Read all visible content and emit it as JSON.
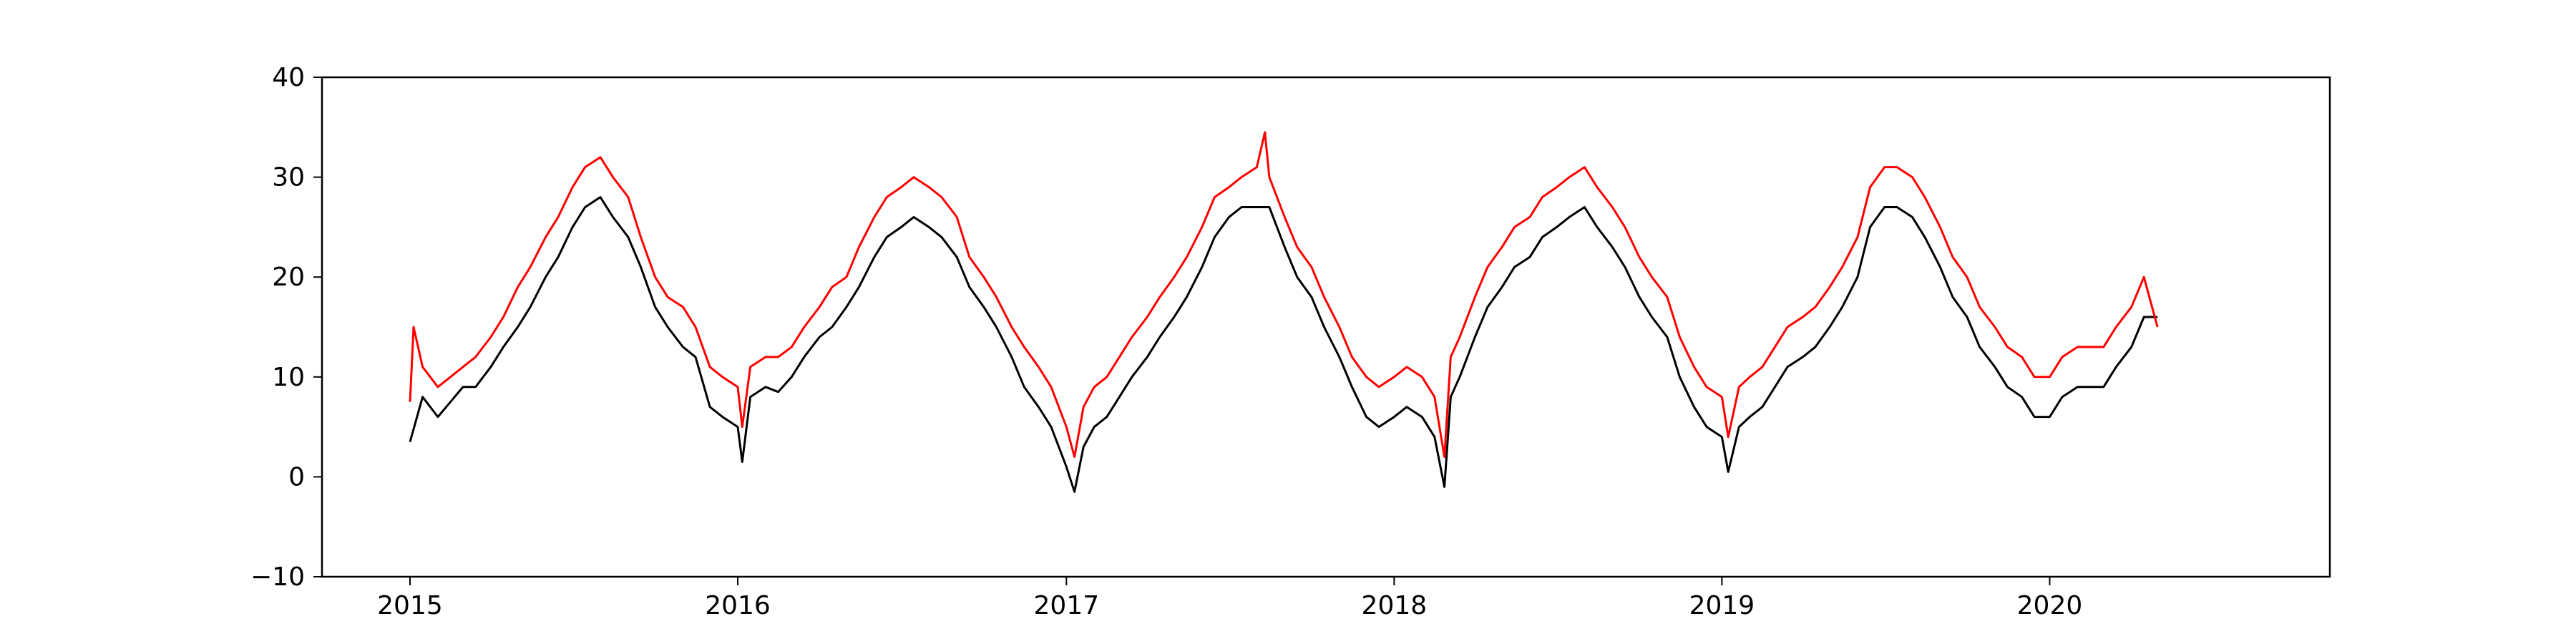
{
  "chart_data": {
    "type": "line",
    "title": "",
    "xlabel": "",
    "ylabel": "",
    "xlim": [
      "2014-09-25",
      "2020-11-08"
    ],
    "ylim": [
      -10,
      40
    ],
    "grid": false,
    "legend": "none",
    "x_ticks": [
      {
        "value": "2015-01-01",
        "label": "2015"
      },
      {
        "value": "2016-01-01",
        "label": "2016"
      },
      {
        "value": "2017-01-01",
        "label": "2017"
      },
      {
        "value": "2018-01-01",
        "label": "2018"
      },
      {
        "value": "2019-01-01",
        "label": "2019"
      },
      {
        "value": "2020-01-01",
        "label": "2020"
      }
    ],
    "y_ticks": [
      {
        "value": -10,
        "label": "−10"
      },
      {
        "value": 0,
        "label": "0"
      },
      {
        "value": 10,
        "label": "10"
      },
      {
        "value": 20,
        "label": "20"
      },
      {
        "value": 30,
        "label": "30"
      },
      {
        "value": 40,
        "label": "40"
      }
    ],
    "series": [
      {
        "color": "#000000",
        "points": [
          [
            "2015-01-01",
            3.5
          ],
          [
            "2015-01-15",
            8
          ],
          [
            "2015-02-01",
            6
          ],
          [
            "2015-02-15",
            7.5
          ],
          [
            "2015-03-01",
            9
          ],
          [
            "2015-03-15",
            9
          ],
          [
            "2015-04-01",
            11
          ],
          [
            "2015-04-15",
            13
          ],
          [
            "2015-05-01",
            15
          ],
          [
            "2015-05-15",
            17
          ],
          [
            "2015-06-01",
            20
          ],
          [
            "2015-06-15",
            22
          ],
          [
            "2015-07-01",
            25
          ],
          [
            "2015-07-15",
            27
          ],
          [
            "2015-08-01",
            28
          ],
          [
            "2015-08-15",
            26
          ],
          [
            "2015-09-01",
            24
          ],
          [
            "2015-09-15",
            21
          ],
          [
            "2015-10-01",
            17
          ],
          [
            "2015-10-15",
            15
          ],
          [
            "2015-11-01",
            13
          ],
          [
            "2015-11-15",
            12
          ],
          [
            "2015-12-01",
            7
          ],
          [
            "2015-12-15",
            6
          ],
          [
            "2016-01-01",
            5
          ],
          [
            "2016-01-06",
            1.5
          ],
          [
            "2016-01-15",
            8
          ],
          [
            "2016-02-01",
            9
          ],
          [
            "2016-02-15",
            8.5
          ],
          [
            "2016-03-01",
            10
          ],
          [
            "2016-03-15",
            12
          ],
          [
            "2016-04-01",
            14
          ],
          [
            "2016-04-15",
            15
          ],
          [
            "2016-05-01",
            17
          ],
          [
            "2016-05-15",
            19
          ],
          [
            "2016-06-01",
            22
          ],
          [
            "2016-06-15",
            24
          ],
          [
            "2016-07-01",
            25
          ],
          [
            "2016-07-15",
            26
          ],
          [
            "2016-08-01",
            25
          ],
          [
            "2016-08-15",
            24
          ],
          [
            "2016-09-01",
            22
          ],
          [
            "2016-09-15",
            19
          ],
          [
            "2016-10-01",
            17
          ],
          [
            "2016-10-15",
            15
          ],
          [
            "2016-11-01",
            12
          ],
          [
            "2016-11-15",
            9
          ],
          [
            "2016-12-01",
            7
          ],
          [
            "2016-12-15",
            5
          ],
          [
            "2017-01-01",
            1
          ],
          [
            "2017-01-10",
            -1.5
          ],
          [
            "2017-01-20",
            3
          ],
          [
            "2017-02-01",
            5
          ],
          [
            "2017-02-15",
            6
          ],
          [
            "2017-03-01",
            8
          ],
          [
            "2017-03-15",
            10
          ],
          [
            "2017-04-01",
            12
          ],
          [
            "2017-04-15",
            14
          ],
          [
            "2017-05-01",
            16
          ],
          [
            "2017-05-15",
            18
          ],
          [
            "2017-06-01",
            21
          ],
          [
            "2017-06-15",
            24
          ],
          [
            "2017-07-01",
            26
          ],
          [
            "2017-07-15",
            27
          ],
          [
            "2017-08-01",
            27
          ],
          [
            "2017-08-15",
            27
          ],
          [
            "2017-09-01",
            23
          ],
          [
            "2017-09-15",
            20
          ],
          [
            "2017-10-01",
            18
          ],
          [
            "2017-10-15",
            15
          ],
          [
            "2017-11-01",
            12
          ],
          [
            "2017-11-15",
            9
          ],
          [
            "2017-12-01",
            6
          ],
          [
            "2017-12-15",
            5
          ],
          [
            "2018-01-01",
            6
          ],
          [
            "2018-01-15",
            7
          ],
          [
            "2018-02-01",
            6
          ],
          [
            "2018-02-15",
            4
          ],
          [
            "2018-02-26",
            -1
          ],
          [
            "2018-03-05",
            8
          ],
          [
            "2018-03-15",
            10
          ],
          [
            "2018-04-01",
            14
          ],
          [
            "2018-04-15",
            17
          ],
          [
            "2018-05-01",
            19
          ],
          [
            "2018-05-15",
            21
          ],
          [
            "2018-06-01",
            22
          ],
          [
            "2018-06-15",
            24
          ],
          [
            "2018-07-01",
            25
          ],
          [
            "2018-07-15",
            26
          ],
          [
            "2018-08-01",
            27
          ],
          [
            "2018-08-15",
            25
          ],
          [
            "2018-09-01",
            23
          ],
          [
            "2018-09-15",
            21
          ],
          [
            "2018-10-01",
            18
          ],
          [
            "2018-10-15",
            16
          ],
          [
            "2018-11-01",
            14
          ],
          [
            "2018-11-15",
            10
          ],
          [
            "2018-12-01",
            7
          ],
          [
            "2018-12-15",
            5
          ],
          [
            "2019-01-01",
            4
          ],
          [
            "2019-01-08",
            0.5
          ],
          [
            "2019-01-20",
            5
          ],
          [
            "2019-02-01",
            6
          ],
          [
            "2019-02-15",
            7
          ],
          [
            "2019-03-01",
            9
          ],
          [
            "2019-03-15",
            11
          ],
          [
            "2019-04-01",
            12
          ],
          [
            "2019-04-15",
            13
          ],
          [
            "2019-05-01",
            15
          ],
          [
            "2019-05-15",
            17
          ],
          [
            "2019-06-01",
            20
          ],
          [
            "2019-06-15",
            25
          ],
          [
            "2019-07-01",
            27
          ],
          [
            "2019-07-15",
            27
          ],
          [
            "2019-08-01",
            26
          ],
          [
            "2019-08-15",
            24
          ],
          [
            "2019-09-01",
            21
          ],
          [
            "2019-09-15",
            18
          ],
          [
            "2019-10-01",
            16
          ],
          [
            "2019-10-15",
            13
          ],
          [
            "2019-11-01",
            11
          ],
          [
            "2019-11-15",
            9
          ],
          [
            "2019-12-01",
            8
          ],
          [
            "2019-12-15",
            6
          ],
          [
            "2020-01-01",
            6
          ],
          [
            "2020-01-15",
            8
          ],
          [
            "2020-02-01",
            9
          ],
          [
            "2020-02-15",
            9
          ],
          [
            "2020-03-01",
            9
          ],
          [
            "2020-03-15",
            11
          ],
          [
            "2020-04-01",
            13
          ],
          [
            "2020-04-15",
            16
          ],
          [
            "2020-04-30",
            16
          ]
        ]
      },
      {
        "color": "#ff0000",
        "points": [
          [
            "2015-01-01",
            7.5
          ],
          [
            "2015-01-05",
            15
          ],
          [
            "2015-01-15",
            11
          ],
          [
            "2015-02-01",
            9
          ],
          [
            "2015-02-15",
            10
          ],
          [
            "2015-03-01",
            11
          ],
          [
            "2015-03-15",
            12
          ],
          [
            "2015-04-01",
            14
          ],
          [
            "2015-04-15",
            16
          ],
          [
            "2015-05-01",
            19
          ],
          [
            "2015-05-15",
            21
          ],
          [
            "2015-06-01",
            24
          ],
          [
            "2015-06-15",
            26
          ],
          [
            "2015-07-01",
            29
          ],
          [
            "2015-07-15",
            31
          ],
          [
            "2015-08-01",
            32
          ],
          [
            "2015-08-15",
            30
          ],
          [
            "2015-09-01",
            28
          ],
          [
            "2015-09-15",
            24
          ],
          [
            "2015-10-01",
            20
          ],
          [
            "2015-10-15",
            18
          ],
          [
            "2015-11-01",
            17
          ],
          [
            "2015-11-15",
            15
          ],
          [
            "2015-12-01",
            11
          ],
          [
            "2015-12-15",
            10
          ],
          [
            "2016-01-01",
            9
          ],
          [
            "2016-01-06",
            5
          ],
          [
            "2016-01-15",
            11
          ],
          [
            "2016-02-01",
            12
          ],
          [
            "2016-02-15",
            12
          ],
          [
            "2016-03-01",
            13
          ],
          [
            "2016-03-15",
            15
          ],
          [
            "2016-04-01",
            17
          ],
          [
            "2016-04-15",
            19
          ],
          [
            "2016-05-01",
            20
          ],
          [
            "2016-05-15",
            23
          ],
          [
            "2016-06-01",
            26
          ],
          [
            "2016-06-15",
            28
          ],
          [
            "2016-07-01",
            29
          ],
          [
            "2016-07-15",
            30
          ],
          [
            "2016-08-01",
            29
          ],
          [
            "2016-08-15",
            28
          ],
          [
            "2016-09-01",
            26
          ],
          [
            "2016-09-15",
            22
          ],
          [
            "2016-10-01",
            20
          ],
          [
            "2016-10-15",
            18
          ],
          [
            "2016-11-01",
            15
          ],
          [
            "2016-11-15",
            13
          ],
          [
            "2016-12-01",
            11
          ],
          [
            "2016-12-15",
            9
          ],
          [
            "2017-01-01",
            5
          ],
          [
            "2017-01-10",
            2
          ],
          [
            "2017-01-20",
            7
          ],
          [
            "2017-02-01",
            9
          ],
          [
            "2017-02-15",
            10
          ],
          [
            "2017-03-01",
            12
          ],
          [
            "2017-03-15",
            14
          ],
          [
            "2017-04-01",
            16
          ],
          [
            "2017-04-15",
            18
          ],
          [
            "2017-05-01",
            20
          ],
          [
            "2017-05-15",
            22
          ],
          [
            "2017-06-01",
            25
          ],
          [
            "2017-06-15",
            28
          ],
          [
            "2017-07-01",
            29
          ],
          [
            "2017-07-15",
            30
          ],
          [
            "2017-08-01",
            31
          ],
          [
            "2017-08-10",
            34.5
          ],
          [
            "2017-08-15",
            30
          ],
          [
            "2017-09-01",
            26
          ],
          [
            "2017-09-15",
            23
          ],
          [
            "2017-10-01",
            21
          ],
          [
            "2017-10-15",
            18
          ],
          [
            "2017-11-01",
            15
          ],
          [
            "2017-11-15",
            12
          ],
          [
            "2017-12-01",
            10
          ],
          [
            "2017-12-15",
            9
          ],
          [
            "2018-01-01",
            10
          ],
          [
            "2018-01-15",
            11
          ],
          [
            "2018-02-01",
            10
          ],
          [
            "2018-02-15",
            8
          ],
          [
            "2018-02-26",
            2
          ],
          [
            "2018-03-05",
            12
          ],
          [
            "2018-03-15",
            14
          ],
          [
            "2018-04-01",
            18
          ],
          [
            "2018-04-15",
            21
          ],
          [
            "2018-05-01",
            23
          ],
          [
            "2018-05-15",
            25
          ],
          [
            "2018-06-01",
            26
          ],
          [
            "2018-06-15",
            28
          ],
          [
            "2018-07-01",
            29
          ],
          [
            "2018-07-15",
            30
          ],
          [
            "2018-08-01",
            31
          ],
          [
            "2018-08-15",
            29
          ],
          [
            "2018-09-01",
            27
          ],
          [
            "2018-09-15",
            25
          ],
          [
            "2018-10-01",
            22
          ],
          [
            "2018-10-15",
            20
          ],
          [
            "2018-11-01",
            18
          ],
          [
            "2018-11-15",
            14
          ],
          [
            "2018-12-01",
            11
          ],
          [
            "2018-12-15",
            9
          ],
          [
            "2019-01-01",
            8
          ],
          [
            "2019-01-08",
            4
          ],
          [
            "2019-01-20",
            9
          ],
          [
            "2019-02-01",
            10
          ],
          [
            "2019-02-15",
            11
          ],
          [
            "2019-03-01",
            13
          ],
          [
            "2019-03-15",
            15
          ],
          [
            "2019-04-01",
            16
          ],
          [
            "2019-04-15",
            17
          ],
          [
            "2019-05-01",
            19
          ],
          [
            "2019-05-15",
            21
          ],
          [
            "2019-06-01",
            24
          ],
          [
            "2019-06-15",
            29
          ],
          [
            "2019-07-01",
            31
          ],
          [
            "2019-07-15",
            31
          ],
          [
            "2019-08-01",
            30
          ],
          [
            "2019-08-15",
            28
          ],
          [
            "2019-09-01",
            25
          ],
          [
            "2019-09-15",
            22
          ],
          [
            "2019-10-01",
            20
          ],
          [
            "2019-10-15",
            17
          ],
          [
            "2019-11-01",
            15
          ],
          [
            "2019-11-15",
            13
          ],
          [
            "2019-12-01",
            12
          ],
          [
            "2019-12-15",
            10
          ],
          [
            "2020-01-01",
            10
          ],
          [
            "2020-01-15",
            12
          ],
          [
            "2020-02-01",
            13
          ],
          [
            "2020-02-15",
            13
          ],
          [
            "2020-03-01",
            13
          ],
          [
            "2020-03-15",
            15
          ],
          [
            "2020-04-01",
            17
          ],
          [
            "2020-04-15",
            20
          ],
          [
            "2020-04-30",
            15
          ]
        ]
      }
    ]
  }
}
